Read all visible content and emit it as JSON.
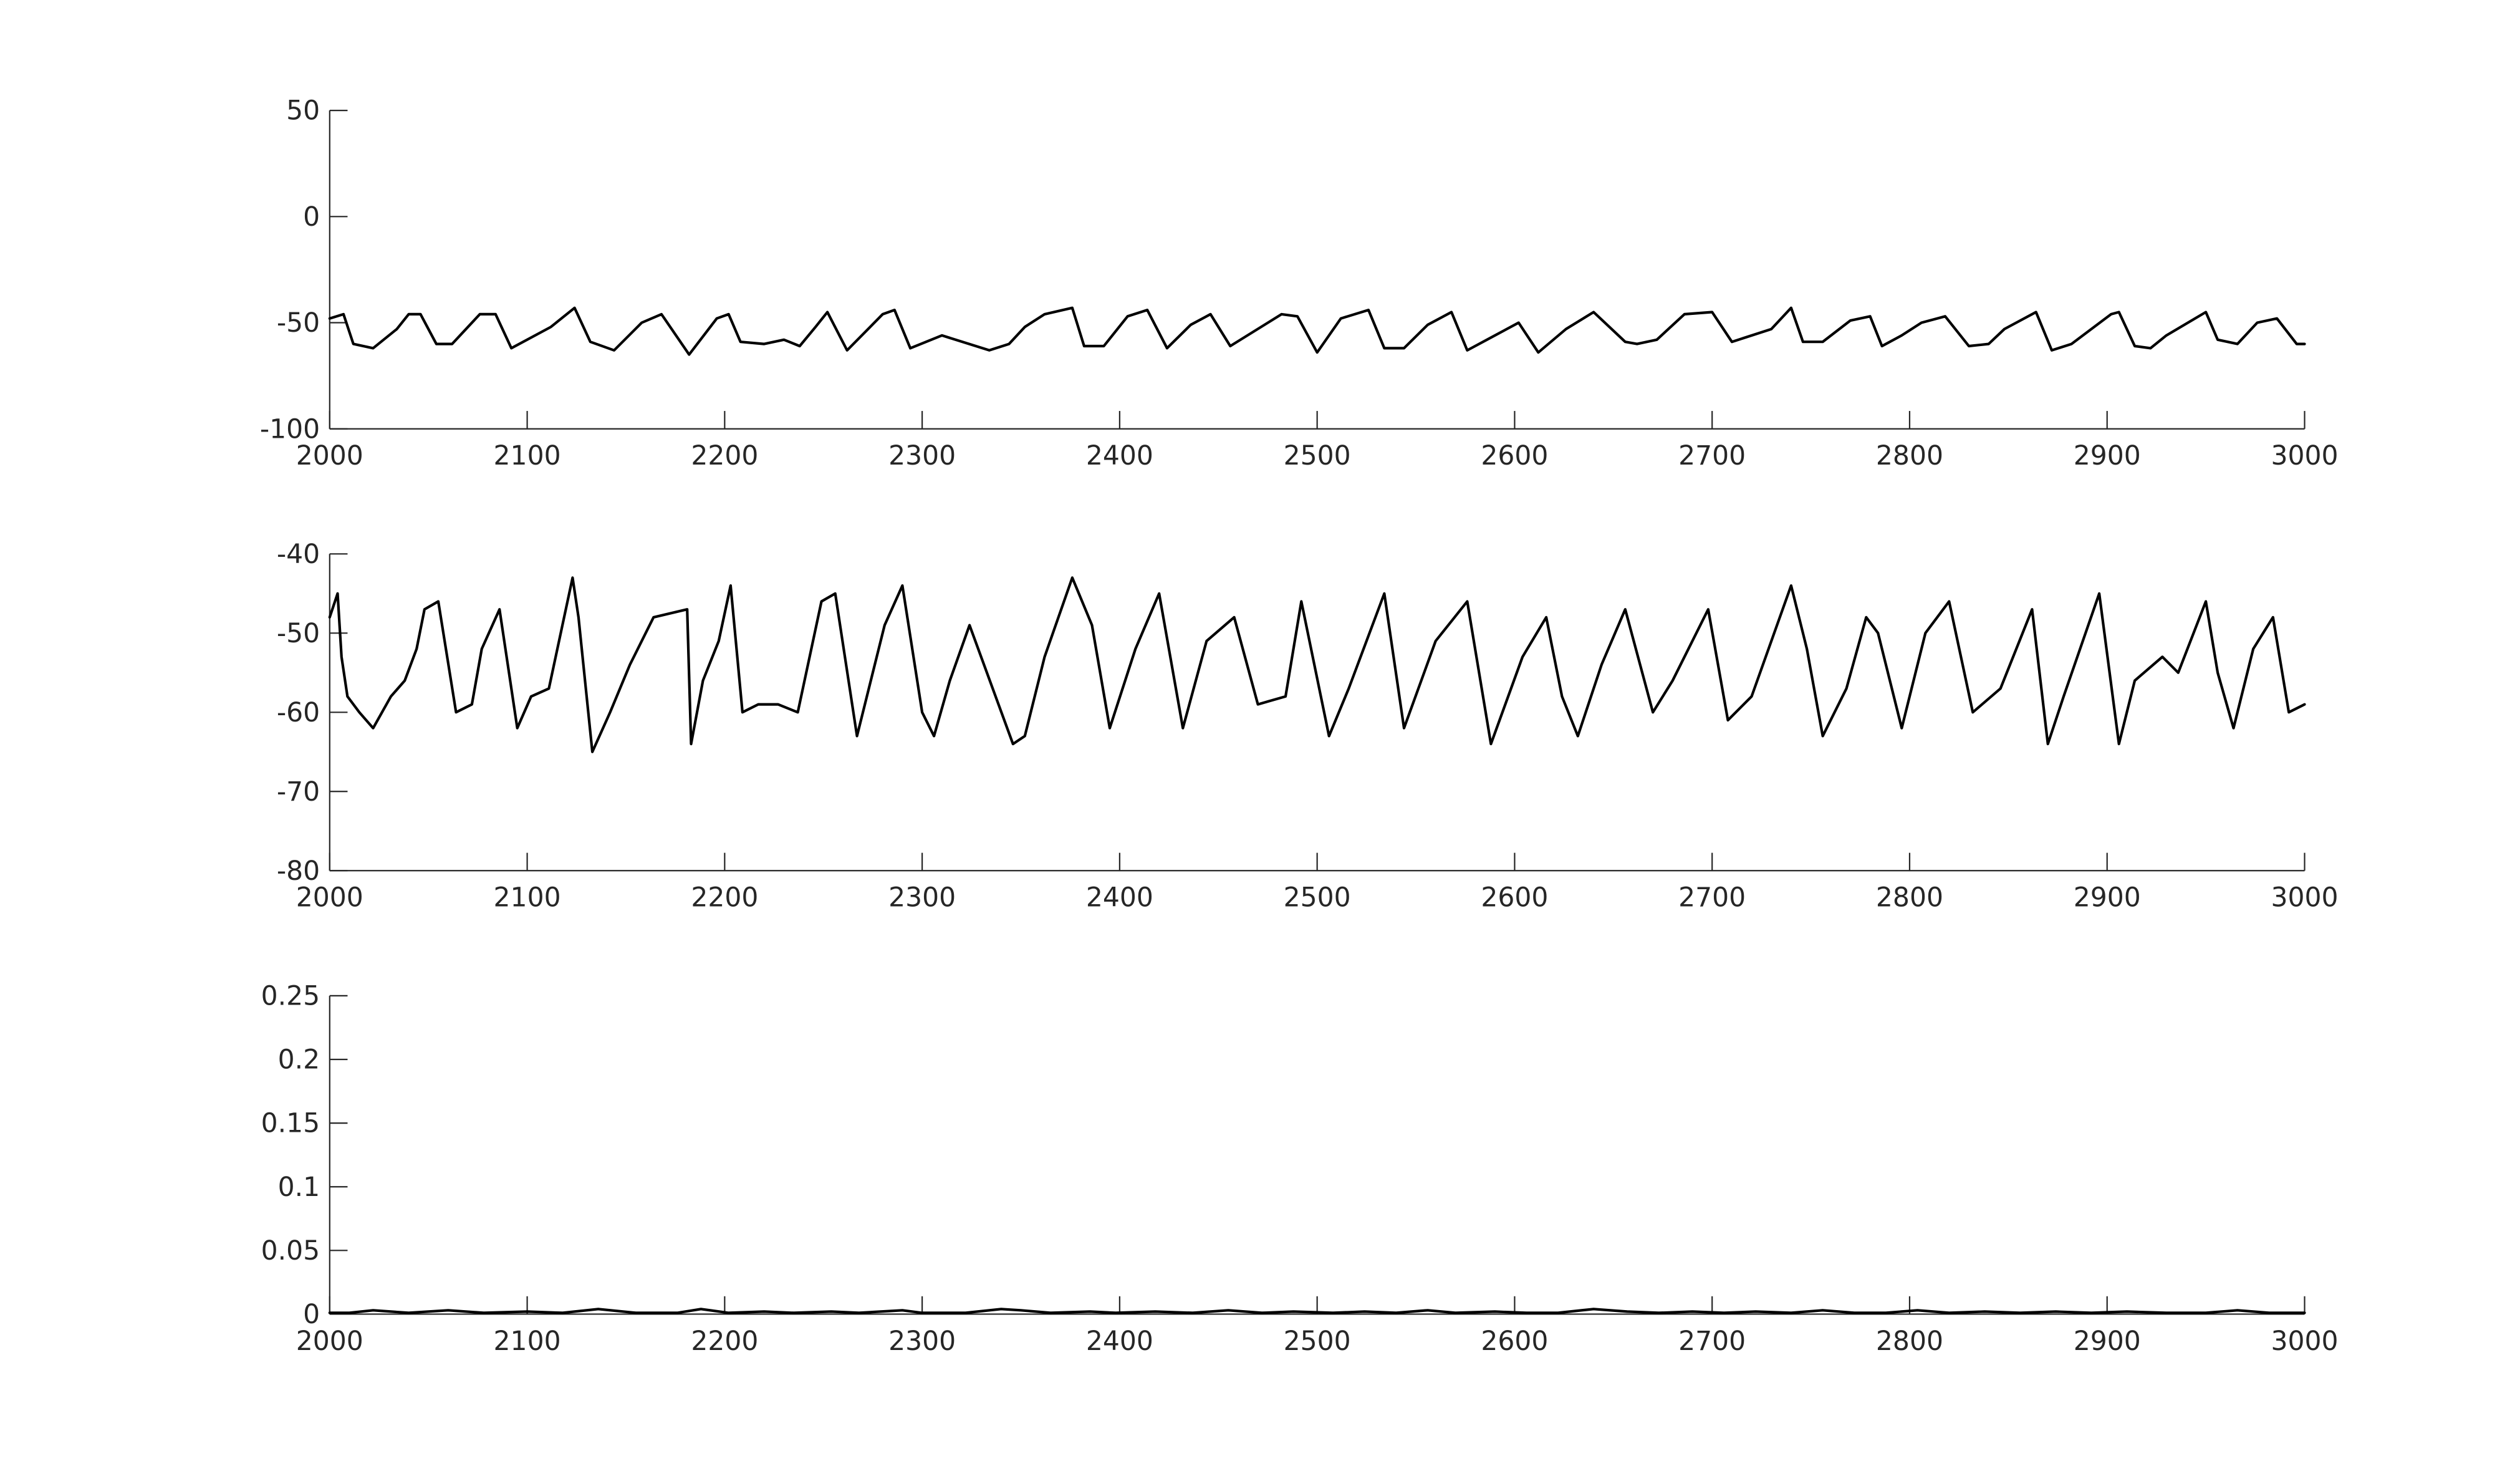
{
  "chart_data": [
    {
      "type": "line",
      "title": "",
      "xlabel": "",
      "ylabel": "",
      "xlim": [
        2000,
        3000
      ],
      "ylim": [
        -100,
        50
      ],
      "grid": false,
      "legend": "none",
      "xticks": [
        2000,
        2100,
        2200,
        2300,
        2400,
        2500,
        2600,
        2700,
        2800,
        2900,
        3000
      ],
      "xtick_labels": [
        "2000",
        "2100",
        "2200",
        "2300",
        "2400",
        "2500",
        "2600",
        "2700",
        "2800",
        "2900",
        "3000"
      ],
      "yticks": [
        -100,
        -50,
        0,
        50
      ],
      "ytick_labels": [
        "-100",
        "-50",
        "0",
        "50"
      ],
      "series": [
        {
          "color": "#000000",
          "x": [
            2000,
            2007,
            2012,
            2022,
            2034,
            2040,
            2046,
            2054,
            2062,
            2076,
            2084,
            2092,
            2112,
            2124,
            2132,
            2144,
            2158,
            2168,
            2182,
            2196,
            2202,
            2208,
            2220,
            2230,
            2238,
            2246,
            2252,
            2262,
            2280,
            2286,
            2294,
            2310,
            2334,
            2344,
            2352,
            2362,
            2376,
            2382,
            2392,
            2404,
            2414,
            2424,
            2436,
            2446,
            2456,
            2482,
            2490,
            2500,
            2512,
            2526,
            2534,
            2544,
            2556,
            2568,
            2576,
            2588,
            2602,
            2612,
            2626,
            2640,
            2656,
            2662,
            2672,
            2686,
            2700,
            2710,
            2730,
            2740,
            2746,
            2756,
            2770,
            2780,
            2786,
            2796,
            2806,
            2818,
            2830,
            2840,
            2848,
            2864,
            2872,
            2882,
            2902,
            2906,
            2914,
            2922,
            2930,
            2950,
            2956,
            2966,
            2976,
            2986,
            2996,
            3000
          ],
          "y": [
            -48,
            -46,
            -60,
            -62,
            -53,
            -46,
            -46,
            -60,
            -60,
            -46,
            -46,
            -62,
            -52,
            -43,
            -59,
            -63,
            -50,
            -46,
            -65,
            -48,
            -46,
            -59,
            -60,
            -58,
            -61,
            -52,
            -45,
            -63,
            -46,
            -44,
            -62,
            -56,
            -63,
            -60,
            -52,
            -46,
            -43,
            -61,
            -61,
            -47,
            -44,
            -62,
            -51,
            -46,
            -61,
            -46,
            -47,
            -64,
            -48,
            -44,
            -62,
            -62,
            -51,
            -45,
            -63,
            -57,
            -50,
            -64,
            -53,
            -45,
            -59,
            -60,
            -58,
            -46,
            -45,
            -59,
            -53,
            -43,
            -59,
            -59,
            -49,
            -47,
            -61,
            -56,
            -50,
            -47,
            -61,
            -60,
            -53,
            -45,
            -63,
            -60,
            -46,
            -45,
            -61,
            -62,
            -56,
            -45,
            -58,
            -60,
            -50,
            -48,
            -60,
            -60
          ]
        }
      ]
    },
    {
      "type": "line",
      "title": "",
      "xlabel": "",
      "ylabel": "",
      "xlim": [
        2000,
        3000
      ],
      "ylim": [
        -80,
        -40
      ],
      "grid": false,
      "legend": "none",
      "xticks": [
        2000,
        2100,
        2200,
        2300,
        2400,
        2500,
        2600,
        2700,
        2800,
        2900,
        3000
      ],
      "xtick_labels": [
        "2000",
        "2100",
        "2200",
        "2300",
        "2400",
        "2500",
        "2600",
        "2700",
        "2800",
        "2900",
        "3000"
      ],
      "yticks": [
        -80,
        -70,
        -60,
        -50,
        -40
      ],
      "ytick_labels": [
        "-80",
        "-70",
        "-60",
        "-50",
        "-40"
      ],
      "series": [
        {
          "color": "#000000",
          "x": [
            2000,
            2004,
            2006,
            2009,
            2015,
            2022,
            2031,
            2038,
            2044,
            2048,
            2055,
            2064,
            2072,
            2077,
            2086,
            2095,
            2102,
            2111,
            2123,
            2126,
            2133,
            2142,
            2152,
            2164,
            2181,
            2183,
            2189,
            2197,
            2203,
            2209,
            2217,
            2227,
            2237,
            2249,
            2256,
            2267,
            2281,
            2290,
            2300,
            2306,
            2314,
            2324,
            2346,
            2352,
            2362,
            2376,
            2386,
            2395,
            2408,
            2420,
            2432,
            2444,
            2458,
            2470,
            2484,
            2492,
            2506,
            2516,
            2534,
            2544,
            2560,
            2576,
            2588,
            2604,
            2616,
            2624,
            2632,
            2644,
            2656,
            2670,
            2680,
            2698,
            2708,
            2720,
            2740,
            2748,
            2756,
            2768,
            2778,
            2784,
            2796,
            2808,
            2820,
            2832,
            2846,
            2862,
            2870,
            2878,
            2896,
            2906,
            2914,
            2928,
            2936,
            2950,
            2956,
            2964,
            2974,
            2984,
            2992,
            3000
          ],
          "y": [
            -48,
            -45,
            -53,
            -58,
            -60,
            -62,
            -58,
            -56,
            -52,
            -47,
            -46,
            -60,
            -59,
            -52,
            -47,
            -62,
            -58,
            -57,
            -43,
            -48,
            -65,
            -60,
            -54,
            -48,
            -47,
            -64,
            -56,
            -51,
            -44,
            -60,
            -59,
            -59,
            -60,
            -46,
            -45,
            -63,
            -49,
            -44,
            -60,
            -63,
            -56,
            -49,
            -64,
            -63,
            -53,
            -43,
            -49,
            -62,
            -52,
            -45,
            -62,
            -51,
            -48,
            -59,
            -58,
            -46,
            -63,
            -57,
            -45,
            -62,
            -51,
            -46,
            -64,
            -53,
            -48,
            -58,
            -63,
            -54,
            -47,
            -60,
            -56,
            -47,
            -61,
            -58,
            -44,
            -52,
            -63,
            -57,
            -48,
            -50,
            -62,
            -50,
            -46,
            -60,
            -57,
            -47,
            -64,
            -58,
            -45,
            -64,
            -56,
            -53,
            -55,
            -46,
            -55,
            -62,
            -52,
            -48,
            -60,
            -59
          ]
        }
      ]
    },
    {
      "type": "line",
      "title": "",
      "xlabel": "",
      "ylabel": "",
      "xlim": [
        2000,
        3000
      ],
      "ylim": [
        0,
        0.25
      ],
      "grid": false,
      "legend": "none",
      "xticks": [
        2000,
        2100,
        2200,
        2300,
        2400,
        2500,
        2600,
        2700,
        2800,
        2900,
        3000
      ],
      "xtick_labels": [
        "2000",
        "2100",
        "2200",
        "2300",
        "2400",
        "2500",
        "2600",
        "2700",
        "2800",
        "2900",
        "3000"
      ],
      "yticks": [
        0,
        0.05,
        0.1,
        0.15,
        0.2,
        0.25
      ],
      "ytick_labels": [
        "0",
        "0.05",
        "0.1",
        "0.15",
        "0.2",
        "0.25"
      ],
      "series": [
        {
          "color": "#000000",
          "x": [
            2000,
            2010,
            2022,
            2040,
            2060,
            2078,
            2100,
            2118,
            2136,
            2155,
            2176,
            2188,
            2202,
            2220,
            2235,
            2254,
            2268,
            2290,
            2300,
            2322,
            2340,
            2350,
            2365,
            2385,
            2398,
            2418,
            2437,
            2455,
            2472,
            2488,
            2508,
            2524,
            2540,
            2556,
            2570,
            2590,
            2606,
            2622,
            2640,
            2657,
            2673,
            2690,
            2706,
            2722,
            2740,
            2756,
            2772,
            2788,
            2804,
            2820,
            2838,
            2856,
            2874,
            2892,
            2910,
            2930,
            2950,
            2966,
            2982,
            3000
          ],
          "y": [
            0.001,
            0.001,
            0.003,
            0.001,
            0.003,
            0.001,
            0.002,
            0.001,
            0.004,
            0.001,
            0.001,
            0.004,
            0.001,
            0.002,
            0.001,
            0.002,
            0.001,
            0.003,
            0.001,
            0.001,
            0.004,
            0.003,
            0.001,
            0.002,
            0.001,
            0.002,
            0.001,
            0.003,
            0.001,
            0.002,
            0.001,
            0.002,
            0.001,
            0.003,
            0.001,
            0.002,
            0.001,
            0.001,
            0.004,
            0.002,
            0.001,
            0.002,
            0.001,
            0.002,
            0.001,
            0.003,
            0.001,
            0.001,
            0.003,
            0.001,
            0.002,
            0.001,
            0.002,
            0.001,
            0.002,
            0.001,
            0.001,
            0.003,
            0.001,
            0.001
          ]
        }
      ]
    }
  ]
}
